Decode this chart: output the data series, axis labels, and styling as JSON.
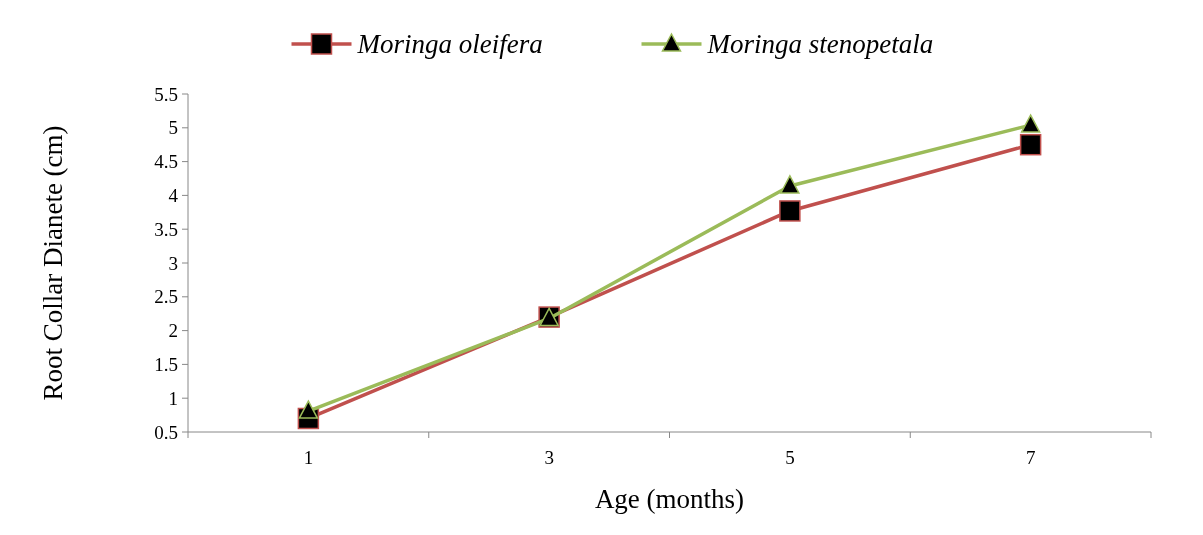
{
  "chart_data": {
    "type": "line",
    "xlabel": "Age (months)",
    "ylabel": "Root Collar Dianete (cm)",
    "categories": [
      "1",
      "3",
      "5",
      "7"
    ],
    "series": [
      {
        "name": "Moringa oleifera",
        "color": "#c0504d",
        "marker": "square",
        "values": [
          0.7,
          2.2,
          3.77,
          4.75
        ]
      },
      {
        "name": "Moringa stenopetala",
        "color": "#9bbb59",
        "marker": "triangle",
        "values": [
          0.81,
          2.18,
          4.14,
          5.04
        ]
      }
    ],
    "ylim": [
      0.5,
      5.5
    ],
    "yticks": [
      0.5,
      1,
      1.5,
      2,
      2.5,
      3,
      3.5,
      4,
      4.5,
      5,
      5.5
    ],
    "legend": "top",
    "grid": false
  }
}
